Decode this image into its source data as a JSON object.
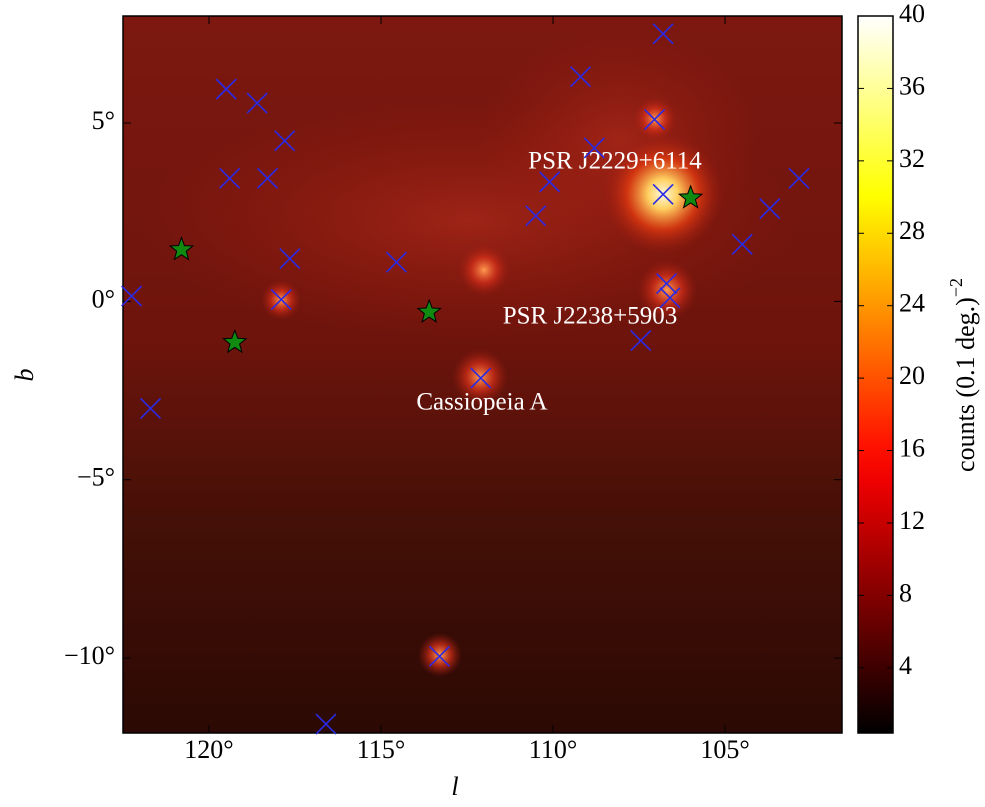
{
  "chart_data": {
    "type": "scatter",
    "xlabel": "l",
    "ylabel": "b",
    "xlim": [
      122.5,
      101.6
    ],
    "ylim": [
      -12.1,
      8
    ],
    "xticks": [
      {
        "value": 120,
        "label": "120°"
      },
      {
        "value": 115,
        "label": "115°"
      },
      {
        "value": 110,
        "label": "110°"
      },
      {
        "value": 105,
        "label": "105°"
      }
    ],
    "yticks": [
      {
        "value": 5,
        "label": "5°"
      },
      {
        "value": 0,
        "label": "0°"
      },
      {
        "value": -5,
        "label": "−5°"
      },
      {
        "value": -10,
        "label": "−10°"
      }
    ],
    "series": [
      {
        "marker": "x",
        "color": "#2a2ae6",
        "x": [
          106.8,
          109.2,
          119.5,
          118.6,
          107.05,
          117.8,
          108.8,
          119.4,
          118.3,
          110.1,
          106.8,
          102.85,
          103.7,
          110.5,
          104.5,
          117.65,
          114.55,
          106.7,
          106.6,
          122.25,
          117.9,
          107.45,
          112.1,
          121.7,
          113.3,
          116.6
        ],
        "values": [
          7.5,
          6.3,
          5.95,
          5.56,
          5.1,
          4.5,
          4.3,
          3.45,
          3.45,
          3.35,
          3.0,
          3.45,
          2.6,
          2.4,
          1.6,
          1.2,
          1.1,
          0.5,
          0.1,
          0.15,
          0.05,
          -1.1,
          -2.15,
          -3.0,
          -9.95,
          -11.85
        ]
      },
      {
        "marker": "star",
        "color": "#118a11",
        "x": [
          120.8,
          106.0,
          113.6,
          119.25
        ],
        "values": [
          1.45,
          2.9,
          -0.3,
          -1.15
        ]
      }
    ],
    "annotations": [
      "PSR J2229+6114",
      "PSR J2238+5903",
      "Cassiopeia A"
    ],
    "colorbar": {
      "label": "counts (0.1 deg.)",
      "label_exponent": "−2",
      "colormap": "hot",
      "lim": [
        0.4,
        40
      ],
      "ticks": [
        4,
        8,
        12,
        16,
        20,
        24,
        28,
        32,
        36,
        40
      ]
    }
  }
}
